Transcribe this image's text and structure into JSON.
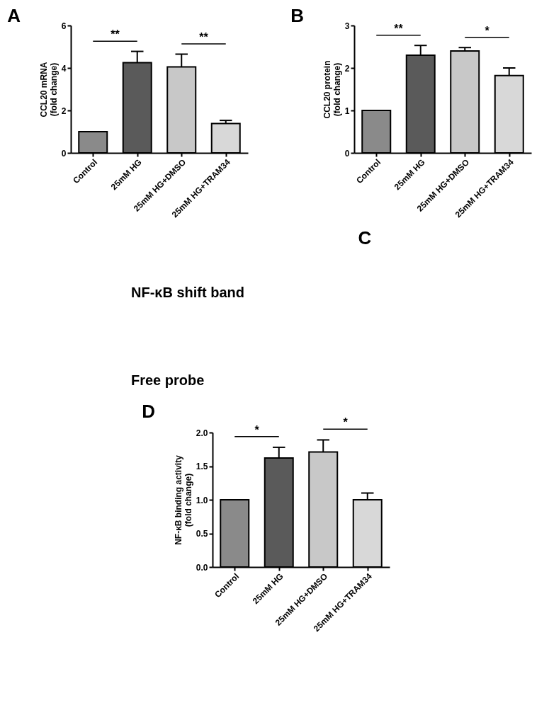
{
  "chart_data": [
    {
      "type": "bar",
      "title": "A",
      "ylabel": "CCL20 mRNA\n(fold change)",
      "categories": [
        "Control",
        "25mM HG",
        "25mM HG+DMSO",
        "25mM HG+TRAM34"
      ],
      "values": [
        1.0,
        4.25,
        4.05,
        1.38
      ],
      "colors": [
        "#8a8a8a",
        "#5a5a5a",
        "#c8c8c8",
        "#d8d8d8"
      ],
      "errors": [
        null,
        [
          4.25,
          4.78
        ],
        [
          4.05,
          4.65
        ],
        [
          1.38,
          1.53
        ]
      ],
      "ylim": [
        0,
        6
      ],
      "yticks": [
        0,
        2,
        4,
        6
      ],
      "grid": false,
      "annotations": [
        "**",
        "**"
      ]
    },
    {
      "type": "bar",
      "title": "B",
      "ylabel": "CCL20 protein\n(fold change)",
      "categories": [
        "Control",
        "25mM HG",
        "25mM HG+DMSO",
        "25mM HG+TRAM34"
      ],
      "values": [
        1.0,
        2.3,
        2.4,
        1.82
      ],
      "colors": [
        "#8a8a8a",
        "#5a5a5a",
        "#c8c8c8",
        "#d8d8d8"
      ],
      "errors": [
        null,
        [
          2.3,
          2.53
        ],
        [
          2.4,
          2.48
        ],
        [
          1.82,
          2.0
        ]
      ],
      "ylim": [
        0,
        3
      ],
      "yticks": [
        0,
        1,
        2,
        3
      ],
      "grid": false,
      "annotations": [
        "**",
        "*"
      ]
    },
    {
      "type": "other",
      "title": "C",
      "annotations": [
        "NF-κB shift band",
        "Free probe"
      ]
    },
    {
      "type": "bar",
      "title": "D",
      "ylabel": "NF-κB binding activity\n(fold change)",
      "categories": [
        "Control",
        "25mM HG",
        "25mM HG+DMSO",
        "25mM HG+TRAM34"
      ],
      "values": [
        1.0,
        1.62,
        1.71,
        1.0
      ],
      "colors": [
        "#8a8a8a",
        "#5a5a5a",
        "#c8c8c8",
        "#d8d8d8"
      ],
      "errors": [
        null,
        [
          1.62,
          1.78
        ],
        [
          1.71,
          1.89
        ],
        [
          1.0,
          1.1
        ]
      ],
      "ylim": [
        0,
        2
      ],
      "yticks": [
        {
          "value": 0,
          "label": "0.0"
        },
        {
          "value": 0.5,
          "label": "0.5"
        },
        {
          "value": 1,
          "label": "1.0"
        },
        {
          "value": 1.5,
          "label": "1.5"
        },
        {
          "value": 2,
          "label": "2.0"
        }
      ],
      "grid": false,
      "annotations": [
        "*",
        "*"
      ]
    }
  ]
}
